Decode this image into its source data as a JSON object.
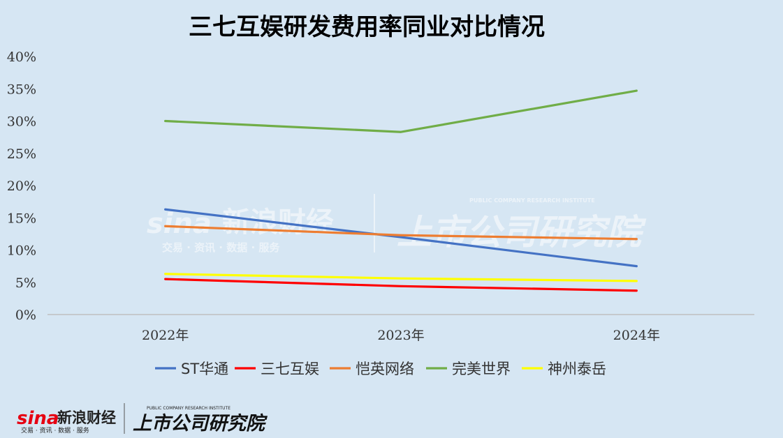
{
  "chart_data": {
    "type": "line",
    "title": "三七互娱研发费用率同业对比情况",
    "categories": [
      "2022年",
      "2023年",
      "2024年"
    ],
    "ylim": [
      0,
      40
    ],
    "yticks": [
      "0%",
      "5%",
      "10%",
      "15%",
      "20%",
      "25%",
      "30%",
      "35%",
      "40%"
    ],
    "ytick_values": [
      0,
      5,
      10,
      15,
      20,
      25,
      30,
      35,
      40
    ],
    "grid": false,
    "legend_position": "bottom",
    "series": [
      {
        "name": "ST华通",
        "values": [
          16.3,
          12.0,
          7.5
        ],
        "color": "#4472c4"
      },
      {
        "name": "三七互娱",
        "values": [
          5.5,
          4.4,
          3.7
        ],
        "color": "#ff0000"
      },
      {
        "name": "恺英网络",
        "values": [
          13.7,
          12.3,
          11.7
        ],
        "color": "#ed7d31"
      },
      {
        "name": "完美世界",
        "values": [
          30.0,
          28.3,
          34.7
        ],
        "color": "#70ad47"
      },
      {
        "name": "神州泰岳",
        "values": [
          6.3,
          5.6,
          5.2
        ],
        "color": "#ffff00"
      }
    ]
  },
  "watermark": {
    "brand": "新浪财经",
    "brand_sub": "交易 · 资讯 · 数据 · 服务",
    "institute": "上市公司研究院",
    "institute_en": "PUBLIC COMPANY RESEARCH INSTITUTE",
    "sina": "sina"
  }
}
